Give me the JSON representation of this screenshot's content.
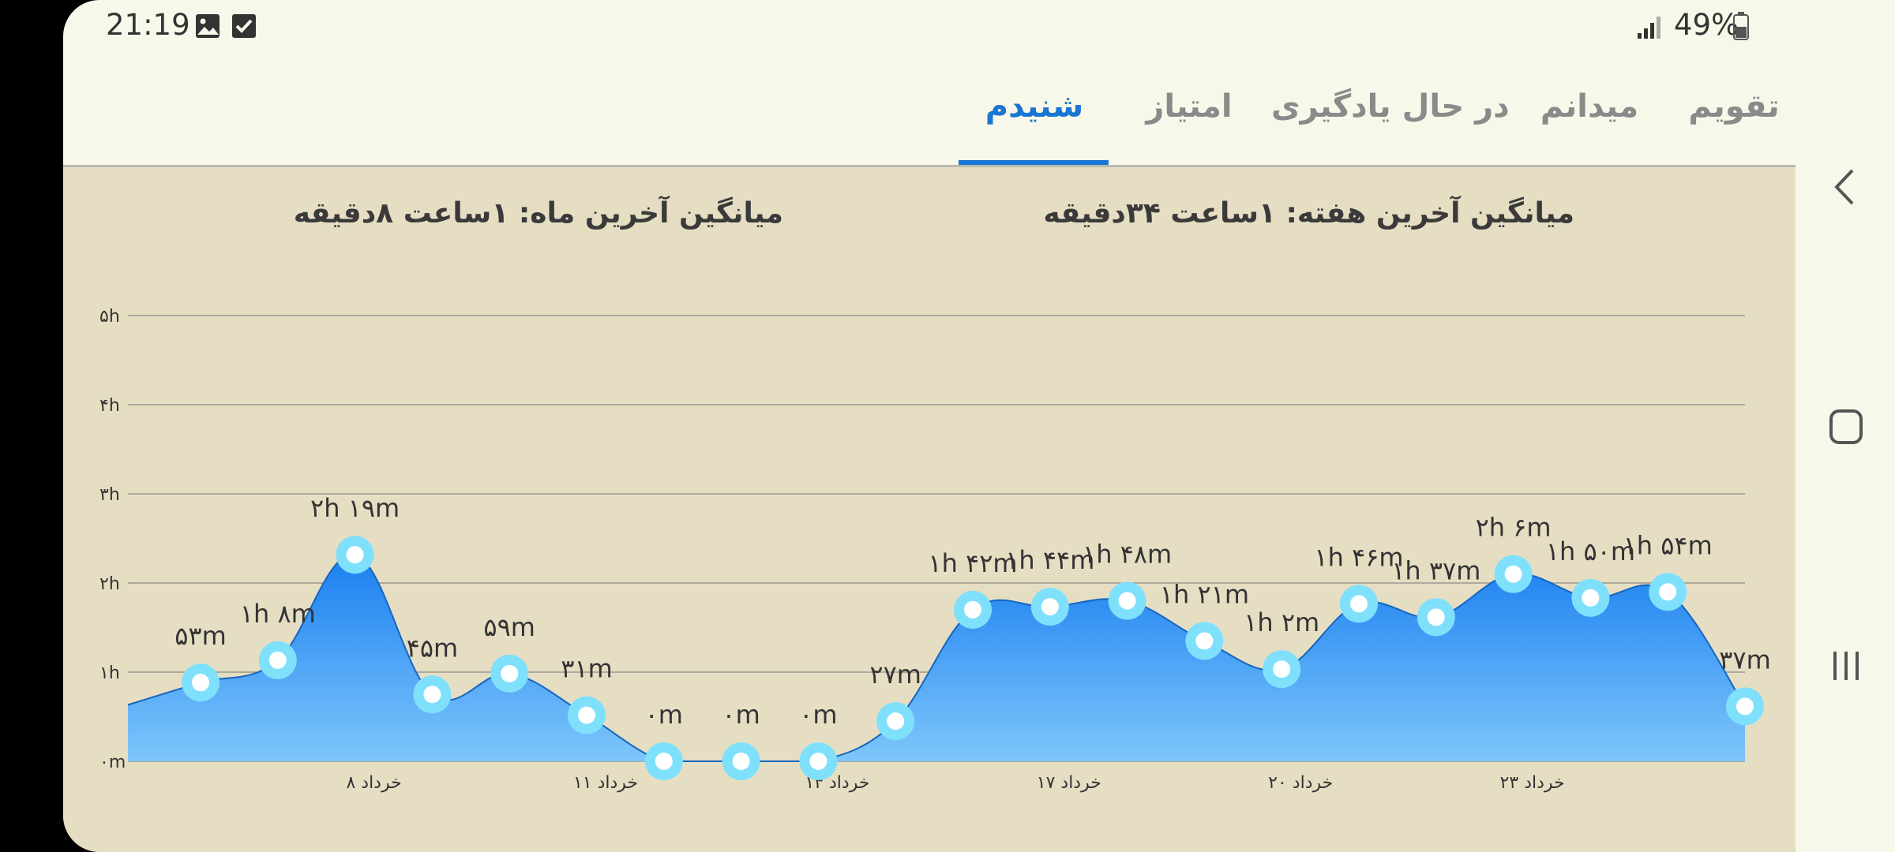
{
  "status_bar": {
    "time": "21:19",
    "left_icons": [
      "image-icon",
      "checkbox-icon"
    ],
    "signal_icon": "signal-icon",
    "battery_percent": "49%",
    "battery_icon": "battery-icon"
  },
  "tabs": [
    {
      "label": "تقویم",
      "active": false
    },
    {
      "label": "میدانم",
      "active": false
    },
    {
      "label": "در حال یادگیری",
      "active": false
    },
    {
      "label": "امتیاز",
      "active": false
    },
    {
      "label": "شنیدم",
      "active": true
    }
  ],
  "summary": {
    "week_avg": "میانگین آخرین هفته: ۱ساعت  ۳۴دقیقه",
    "month_avg": "میانگین آخرین ماه: ۱ساعت  ۸دقیقه"
  },
  "colors": {
    "accent": "#1976d2",
    "area_top": "#1a7ff0",
    "area_bottom": "#7ec6fb",
    "point_ring": "#7fe0fc",
    "content_bg": "#e6dec3",
    "screen_bg": "#f8f8ea"
  },
  "chart_data": {
    "type": "area",
    "y_unit": "minutes",
    "ylim": [
      0,
      300
    ],
    "yticks": [
      {
        "value": 0,
        "label": "۰m"
      },
      {
        "value": 60,
        "label": "۱h"
      },
      {
        "value": 120,
        "label": "۲h"
      },
      {
        "value": 180,
        "label": "۳h"
      },
      {
        "value": 240,
        "label": "۴h"
      },
      {
        "value": 300,
        "label": "۵h"
      }
    ],
    "grid": true,
    "start_value": 38,
    "points": [
      {
        "value": 53,
        "label": "۵۳m"
      },
      {
        "value": 68,
        "label": "۱h ۸m"
      },
      {
        "value": 139,
        "label": "۲h ۱۹m"
      },
      {
        "value": 45,
        "label": "۴۵m"
      },
      {
        "value": 59,
        "label": "۵۹m"
      },
      {
        "value": 31,
        "label": "۳۱m"
      },
      {
        "value": 0,
        "label": "۰m"
      },
      {
        "value": 0,
        "label": "۰m"
      },
      {
        "value": 0,
        "label": "۰m"
      },
      {
        "value": 27,
        "label": "۲۷m"
      },
      {
        "value": 102,
        "label": "۱h ۴۲m"
      },
      {
        "value": 104,
        "label": "۱h ۴۴m"
      },
      {
        "value": 108,
        "label": "۱h ۴۸m"
      },
      {
        "value": 81,
        "label": "۱h ۲۱m"
      },
      {
        "value": 62,
        "label": "۱h ۲m"
      },
      {
        "value": 106,
        "label": "۱h ۴۶m"
      },
      {
        "value": 97,
        "label": "۱h ۳۷m"
      },
      {
        "value": 126,
        "label": "۲h ۶m"
      },
      {
        "value": 110,
        "label": "۱h ۵۰m"
      },
      {
        "value": 114,
        "label": "۱h ۵۴m"
      },
      {
        "value": 37,
        "label": "۳۷m"
      }
    ],
    "xtick_labels": [
      "۸ خرداد",
      "۱۱ خرداد",
      "۱۴ خرداد",
      "۱۷ خرداد",
      "۲۰ خرداد",
      "۲۳ خرداد"
    ]
  },
  "nav_bar": {
    "back_icon": "back-chevron-icon",
    "home_icon": "home-square-icon",
    "recents_icon": "recents-lines-icon"
  }
}
